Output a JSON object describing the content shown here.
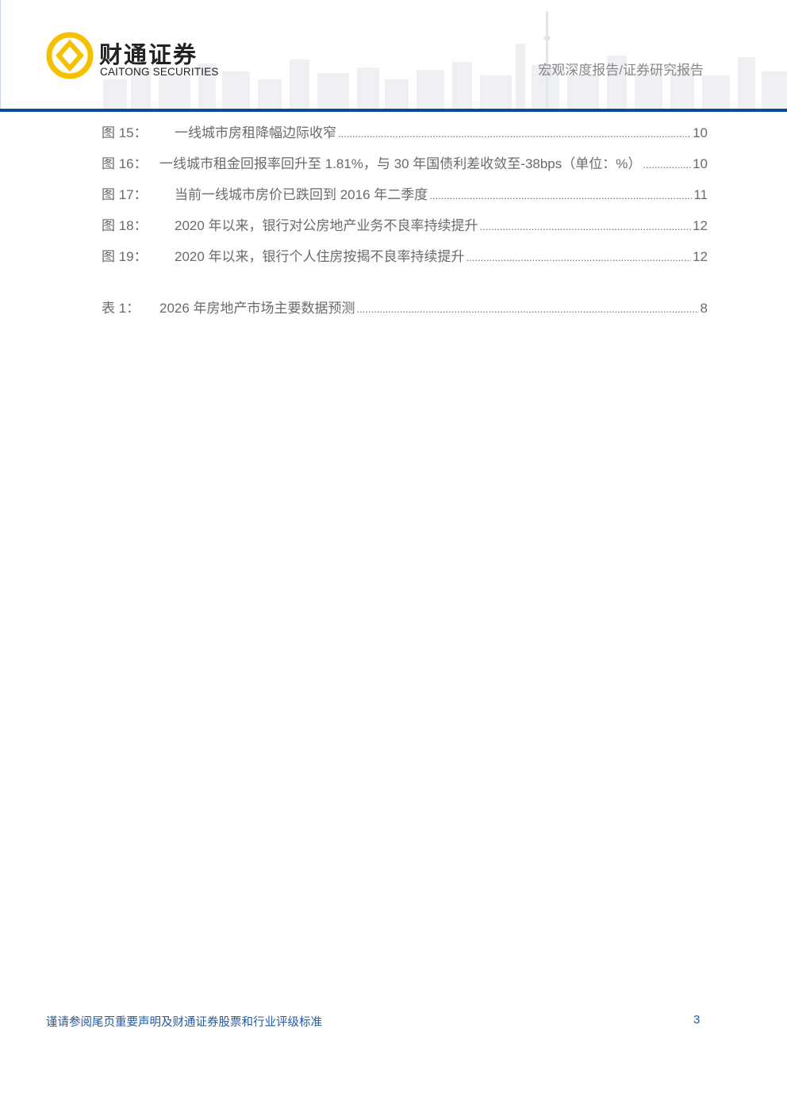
{
  "header": {
    "logo_cn": "财通证券",
    "logo_en": "CAITONG SECURITIES",
    "report_type": "宏观深度报告/证券研究报告",
    "brand_colors": {
      "primary": "#0b4a9a",
      "logo": "#f5c000"
    }
  },
  "toc": {
    "figures": [
      {
        "label": "图 15：",
        "title": "一线城市房租降幅边际收窄",
        "page": "10"
      },
      {
        "label": "图 16：",
        "title": "一线城市租金回报率回升至 1.81%，与 30 年国债利差收敛至-38bps（单位：%）",
        "page": "10"
      },
      {
        "label": "图 17：",
        "title": "当前一线城市房价已跌回到 2016 年二季度",
        "page": "11"
      },
      {
        "label": "图 18：",
        "title": "2020 年以来，银行对公房地产业务不良率持续提升",
        "page": "12"
      },
      {
        "label": "图 19：",
        "title": "2020 年以来，银行个人住房按揭不良率持续提升",
        "page": "12"
      }
    ],
    "tables": [
      {
        "label": "表 1：",
        "title": "2026 年房地产市场主要数据预测",
        "page": "8"
      }
    ]
  },
  "footer": {
    "disclaimer": "谨请参阅尾页重要声明及财通证券股票和行业评级标准",
    "page_number": "3"
  }
}
